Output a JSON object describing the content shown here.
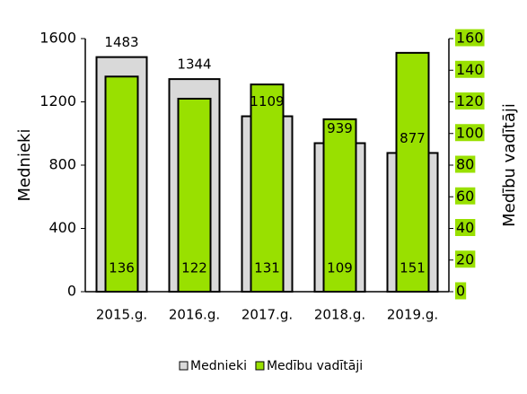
{
  "chart_data": {
    "type": "bar",
    "categories": [
      "2015.g.",
      "2016.g.",
      "2017.g.",
      "2018.g.",
      "2019.g."
    ],
    "series": [
      {
        "name": "Mednieki",
        "color": "#d9d9d9",
        "values": [
          1483,
          1344,
          1109,
          939,
          877
        ]
      },
      {
        "name": "Medību vadītāji",
        "color": "#99e000",
        "axis": "y2",
        "values": [
          136,
          122,
          131,
          109,
          151
        ]
      }
    ],
    "ylabel": "Mednieki",
    "y2label": "Medību vadītāji",
    "ylim": [
      0,
      1600
    ],
    "yticks": [
      0,
      400,
      800,
      1200,
      1600
    ],
    "y2lim": [
      0,
      160
    ],
    "y2ticks": [
      0,
      20,
      40,
      60,
      80,
      100,
      120,
      140,
      160
    ],
    "grid": false,
    "legend": "bottom"
  }
}
